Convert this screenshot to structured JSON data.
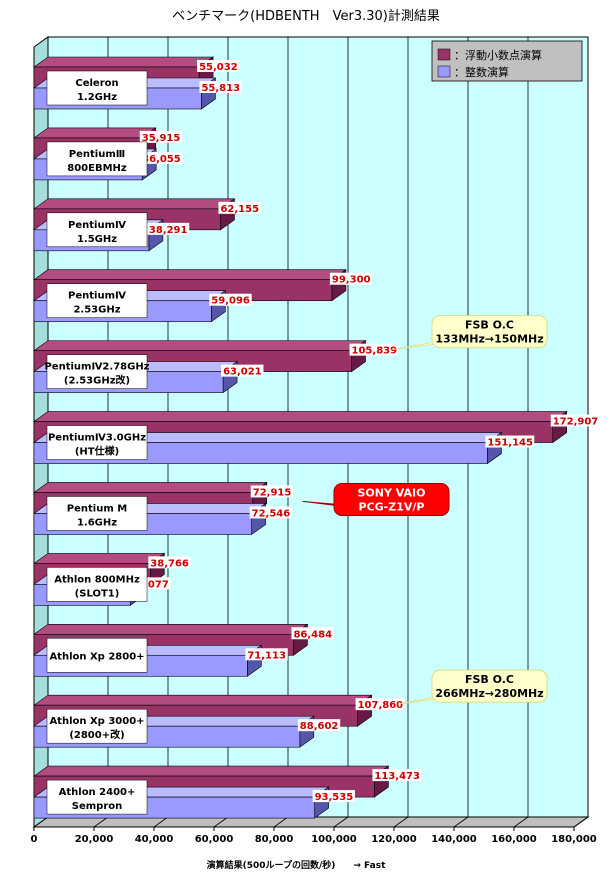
{
  "chart_data": {
    "type": "bar",
    "orientation": "horizontal",
    "title": "ベンチマーク(HDBENTH　Ver3.30)計測結果",
    "xlabel": "演算結果(500ループの回数/秒)　　→ Fast",
    "xlim": [
      0,
      180000
    ],
    "xticks": [
      "0",
      "20,000",
      "40,000",
      "60,000",
      "80,000",
      "100,000",
      "120,000",
      "140,000",
      "160,000",
      "180,000"
    ],
    "grid": true,
    "legend_position": "top-right",
    "categories": [
      {
        "line1": "Celeron",
        "line2": "1.2GHz"
      },
      {
        "line1": "PentiumⅢ",
        "line2": "800EBMHz"
      },
      {
        "line1": "PentiumⅣ",
        "line2": "1.5GHz"
      },
      {
        "line1": "PentiumⅣ",
        "line2": "2.53GHz"
      },
      {
        "line1": "PentiumⅣ2.78GHz",
        "line2": "(2.53GHz改)"
      },
      {
        "line1": "PentiumⅣ3.0GHz",
        "line2": "(HT仕様)"
      },
      {
        "line1": "Pentium M",
        "line2": "1.6GHz"
      },
      {
        "line1": "Athlon 800MHz",
        "line2": "(SLOT1)"
      },
      {
        "line1": "Athlon Xp 2800+",
        "line2": ""
      },
      {
        "line1": "Athlon Xp 3000+",
        "line2": "(2800+改)"
      },
      {
        "line1": "Athlon 2400+",
        "line2": "Sempron"
      }
    ],
    "series": [
      {
        "name": "：浮動小数点演算",
        "color": "#993366",
        "values": [
          55032,
          35915,
          62155,
          99300,
          105839,
          172907,
          72915,
          38766,
          86484,
          107860,
          113473
        ],
        "labels": [
          "55,032",
          "35,915",
          "62,155",
          "99,300",
          "105,839",
          "172,907",
          "72,915",
          "38,766",
          "86,484",
          "107,860",
          "113,473"
        ]
      },
      {
        "name": "：整数演算",
        "color": "#9999ff",
        "values": [
          55813,
          36055,
          38291,
          59096,
          63021,
          151145,
          72546,
          32077,
          71113,
          88602,
          93535
        ],
        "labels": [
          "55,813",
          "36,055",
          "38,291",
          "59,096",
          "63,021",
          "151,145",
          "72,546",
          "32,077",
          "71,113",
          "88,602",
          "93,535"
        ]
      }
    ],
    "annotations": [
      {
        "line1": "FSB O.C",
        "line2": "133MHz→150MHz",
        "category_index": 4,
        "style": "yellow"
      },
      {
        "line1": "SONY VAIO",
        "line2": "PCG-Z1V/P",
        "category_index": 6,
        "style": "red"
      },
      {
        "line1": "FSB O.C",
        "line2": "266MHz→280MHz",
        "category_index": 9,
        "style": "yellow"
      }
    ]
  },
  "colors": {
    "plot_bg": "#ccffff",
    "series1_dark": "#661a44",
    "series1_top": "#b34d80",
    "series2_dark": "#5555aa",
    "series2_top": "#bbbbff",
    "value_label": "#cc0000",
    "legend_bg": "#c0c0c0",
    "callout_yellow": "#ffffcc",
    "callout_red": "#ff0000"
  }
}
